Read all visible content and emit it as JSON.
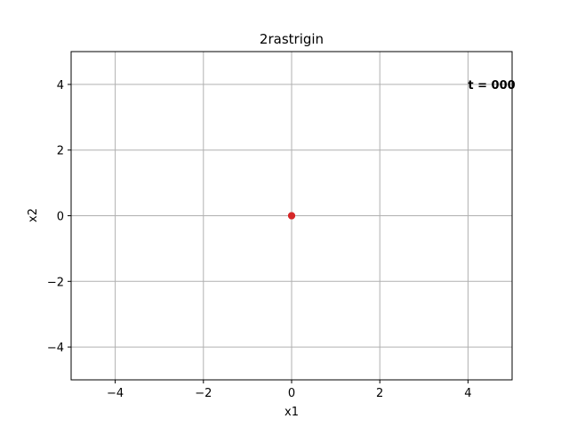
{
  "chart_data": {
    "type": "scatter",
    "title": "2rastrigin",
    "xlabel": "x1",
    "ylabel": "x2",
    "xlim": [
      -5,
      5
    ],
    "ylim": [
      -5,
      5
    ],
    "xticks": [
      -4,
      -2,
      0,
      2,
      4
    ],
    "yticks": [
      -4,
      -2,
      0,
      2,
      4
    ],
    "xtick_labels": [
      "−4",
      "−2",
      "0",
      "2",
      "4"
    ],
    "ytick_labels": [
      "−4",
      "−2",
      "0",
      "2",
      "4"
    ],
    "grid": true,
    "series": [
      {
        "points": [
          [
            0,
            0
          ],
          [
            0,
            0
          ],
          [
            0,
            0
          ]
        ],
        "color": "#d62728",
        "marker": "circle"
      }
    ],
    "annotation": {
      "text": "t = 000",
      "x": 4.0,
      "y": 4.0
    }
  }
}
